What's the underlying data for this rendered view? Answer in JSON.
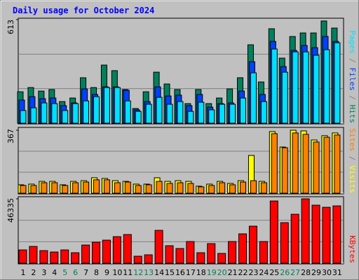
{
  "chart_data": [
    {
      "type": "bar",
      "title": "Daily usage for October 2024",
      "ylim": [
        0,
        613
      ],
      "yticks": [
        613
      ],
      "series": [
        {
          "name": "Hits",
          "color": "#00805c",
          "values": [
            186,
            211,
            190,
            199,
            128,
            149,
            269,
            211,
            344,
            311,
            199,
            87,
            186,
            302,
            232,
            199,
            116,
            199,
            116,
            149,
            203,
            269,
            464,
            244,
            559,
            385,
            513,
            534,
            534,
            605,
            563
          ]
        },
        {
          "name": "Files",
          "color": "#0040ff",
          "values": [
            137,
            157,
            145,
            149,
            104,
            120,
            203,
            170,
            215,
            215,
            195,
            79,
            128,
            215,
            161,
            166,
            104,
            170,
            95,
            116,
            120,
            190,
            364,
            170,
            484,
            335,
            431,
            460,
            447,
            513,
            484
          ]
        },
        {
          "name": "Pages",
          "color": "#00e0ff",
          "values": [
            75,
            91,
            120,
            116,
            75,
            116,
            132,
            157,
            211,
            211,
            132,
            70,
            112,
            153,
            112,
            128,
            70,
            124,
            79,
            112,
            112,
            149,
            298,
            128,
            439,
            302,
            422,
            422,
            402,
            435,
            476
          ]
        }
      ]
    },
    {
      "type": "bar",
      "ylim": [
        0,
        367
      ],
      "yticks": [
        367
      ],
      "series": [
        {
          "name": "Visits",
          "color": "#ffff00",
          "values": [
            49,
            53,
            69,
            69,
            49,
            69,
            73,
            90,
            86,
            73,
            69,
            53,
            53,
            90,
            69,
            73,
            69,
            41,
            53,
            69,
            57,
            73,
            220,
            69,
            359,
            269,
            367,
            363,
            310,
            335,
            351
          ]
        },
        {
          "name": "Sites",
          "color": "#ff8000",
          "values": [
            45,
            45,
            61,
            61,
            45,
            61,
            65,
            78,
            78,
            61,
            65,
            45,
            49,
            69,
            57,
            61,
            57,
            37,
            45,
            61,
            49,
            65,
            73,
            61,
            347,
            265,
            351,
            343,
            298,
            326,
            339
          ]
        }
      ]
    },
    {
      "type": "bar",
      "ylim": [
        0,
        46335
      ],
      "yticks": [
        46335
      ],
      "categories": [
        "1",
        "2",
        "3",
        "4",
        "5",
        "6",
        "7",
        "8",
        "9",
        "10",
        "11",
        "12",
        "13",
        "14",
        "15",
        "16",
        "17",
        "18",
        "19",
        "20",
        "21",
        "22",
        "23",
        "24",
        "25",
        "26",
        "27",
        "28",
        "29",
        "30",
        "31"
      ],
      "label_colors": [
        "#000",
        "#000",
        "#000",
        "#000",
        "#00805c",
        "#00805c",
        "#000",
        "#000",
        "#000",
        "#000",
        "#000",
        "#00805c",
        "#00805c",
        "#000",
        "#000",
        "#000",
        "#000",
        "#000",
        "#00805c",
        "#00805c",
        "#000",
        "#000",
        "#000",
        "#000",
        "#000",
        "#00805c",
        "#00805c",
        "#000",
        "#000",
        "#000",
        "#000"
      ],
      "series": [
        {
          "name": "KBytes",
          "color": "#ff0000",
          "values": [
            9560,
            12070,
            9050,
            8050,
            9560,
            7550,
            13080,
            15090,
            16600,
            19110,
            20620,
            5030,
            6040,
            23640,
            12580,
            10560,
            15590,
            7550,
            14080,
            7040,
            15590,
            21130,
            26660,
            15590,
            44770,
            29170,
            35210,
            46335,
            41760,
            40240,
            41250
          ]
        }
      ]
    }
  ]
}
